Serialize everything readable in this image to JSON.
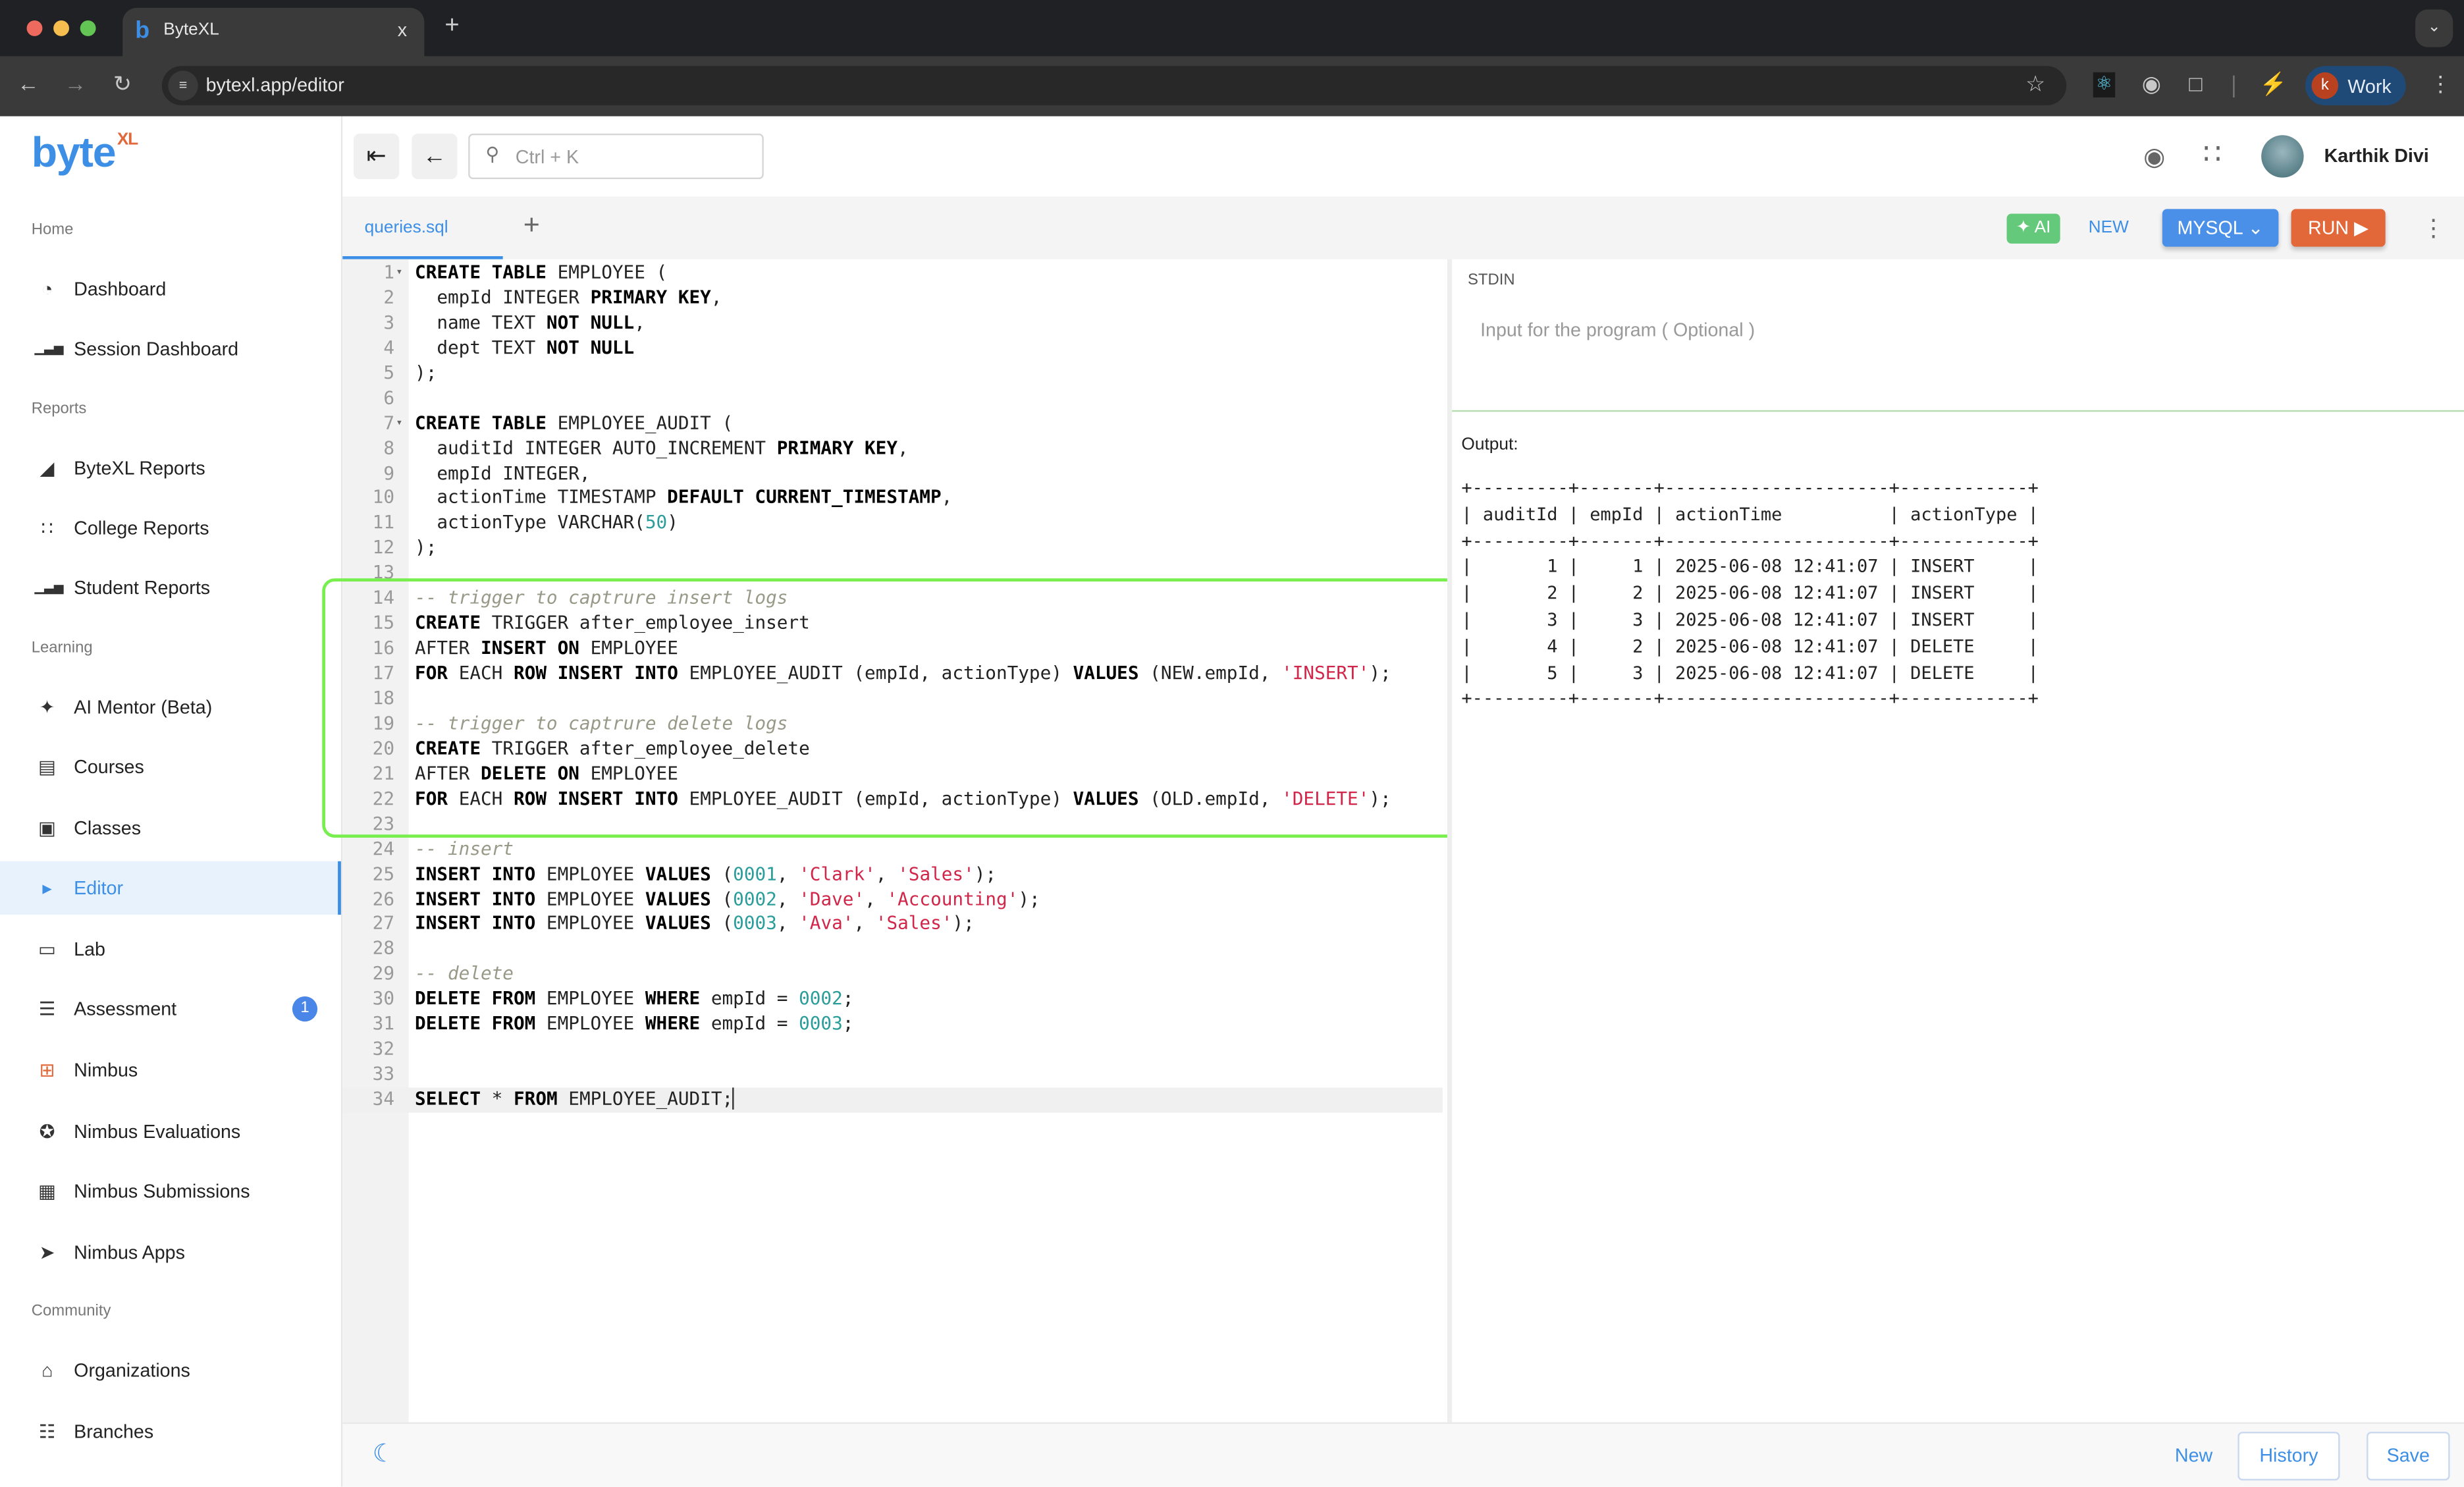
{
  "browser": {
    "tab_title": "ByteXL",
    "tab_close": "x",
    "new_tab": "+",
    "url": "bytexl.app/editor",
    "profile_initial": "k",
    "profile_label": "Work"
  },
  "logo": {
    "text": "byte",
    "sup": "XL",
    "colors": {
      "byte": "#3d8fe6",
      "xl": "#e0683a"
    }
  },
  "sidebar": {
    "sections": [
      {
        "label": "Home",
        "items": [
          {
            "label": "Dashboard",
            "icon": "gauge-icon"
          },
          {
            "label": "Session Dashboard",
            "icon": "bar-chart-icon"
          }
        ]
      },
      {
        "label": "Reports",
        "items": [
          {
            "label": "ByteXL Reports",
            "icon": "area-chart-icon"
          },
          {
            "label": "College Reports",
            "icon": "scatter-chart-icon"
          },
          {
            "label": "Student Reports",
            "icon": "bar-chart-icon"
          }
        ]
      },
      {
        "label": "Learning",
        "items": [
          {
            "label": "AI Mentor (Beta)",
            "icon": "sparkles-icon"
          },
          {
            "label": "Courses",
            "icon": "book-icon"
          },
          {
            "label": "Classes",
            "icon": "classroom-icon"
          },
          {
            "label": "Editor",
            "icon": "terminal-icon",
            "active": true
          },
          {
            "label": "Lab",
            "icon": "laptop-icon"
          },
          {
            "label": "Assessment",
            "icon": "list-icon",
            "badge": "1"
          },
          {
            "label": "Nimbus",
            "icon": "grid-plus-icon"
          },
          {
            "label": "Nimbus Evaluations",
            "icon": "award-icon"
          },
          {
            "label": "Nimbus Submissions",
            "icon": "calendar-check-icon"
          },
          {
            "label": "Nimbus Apps",
            "icon": "rocket-icon"
          }
        ]
      },
      {
        "label": "Community",
        "items": [
          {
            "label": "Organizations",
            "icon": "bank-icon"
          },
          {
            "label": "Branches",
            "icon": "hierarchy-icon"
          }
        ]
      }
    ]
  },
  "header": {
    "search_placeholder": "Ctrl + K",
    "user_name": "Karthik Divi"
  },
  "toolbar": {
    "file_tab": "queries.sql",
    "add_tab": "+",
    "ai_label": "AI",
    "new_label": "NEW",
    "language": "MYSQL",
    "run_label": "RUN",
    "colors": {
      "ai": "#64c97a",
      "language": "#4a8fe8",
      "run": "#e2683a"
    }
  },
  "editor": {
    "active_line": 34,
    "lines": [
      [
        [
          "kw",
          "CREATE TABLE"
        ],
        [
          "p",
          " EMPLOYEE ("
        ]
      ],
      [
        [
          "p",
          "  empId INTEGER "
        ],
        [
          "kw",
          "PRIMARY KEY"
        ],
        [
          "p",
          ","
        ]
      ],
      [
        [
          "p",
          "  name TEXT "
        ],
        [
          "kw",
          "NOT NULL"
        ],
        [
          "p",
          ","
        ]
      ],
      [
        [
          "p",
          "  dept TEXT "
        ],
        [
          "kw",
          "NOT NULL"
        ]
      ],
      [
        [
          "p",
          ");"
        ]
      ],
      [],
      [
        [
          "kw",
          "CREATE TABLE"
        ],
        [
          "p",
          " EMPLOYEE_AUDIT ("
        ]
      ],
      [
        [
          "p",
          "  auditId INTEGER AUTO_INCREMENT "
        ],
        [
          "kw",
          "PRIMARY KEY"
        ],
        [
          "p",
          ","
        ]
      ],
      [
        [
          "p",
          "  empId INTEGER,"
        ]
      ],
      [
        [
          "p",
          "  actionTime TIMESTAMP "
        ],
        [
          "kw",
          "DEFAULT CURRENT_TIMESTAMP"
        ],
        [
          "p",
          ","
        ]
      ],
      [
        [
          "p",
          "  actionType VARCHAR("
        ],
        [
          "num",
          "50"
        ],
        [
          "p",
          ")"
        ]
      ],
      [
        [
          "p",
          ");"
        ]
      ],
      [],
      [
        [
          "cm",
          "-- trigger to captrure insert logs"
        ]
      ],
      [
        [
          "kw",
          "CREATE"
        ],
        [
          "p",
          " TRIGGER after_employee_insert"
        ]
      ],
      [
        [
          "p",
          "AFTER "
        ],
        [
          "kw",
          "INSERT ON"
        ],
        [
          "p",
          " EMPLOYEE"
        ]
      ],
      [
        [
          "kw",
          "FOR"
        ],
        [
          "p",
          " EACH "
        ],
        [
          "kw",
          "ROW INSERT INTO"
        ],
        [
          "p",
          " EMPLOYEE_AUDIT (empId, actionType) "
        ],
        [
          "kw",
          "VALUES"
        ],
        [
          "p",
          " (NEW.empId, "
        ],
        [
          "str",
          "'INSERT'"
        ],
        [
          "p",
          ");"
        ]
      ],
      [],
      [
        [
          "cm",
          "-- trigger to captrure delete logs"
        ]
      ],
      [
        [
          "kw",
          "CREATE"
        ],
        [
          "p",
          " TRIGGER after_employee_delete"
        ]
      ],
      [
        [
          "p",
          "AFTER "
        ],
        [
          "kw",
          "DELETE ON"
        ],
        [
          "p",
          " EMPLOYEE"
        ]
      ],
      [
        [
          "kw",
          "FOR"
        ],
        [
          "p",
          " EACH "
        ],
        [
          "kw",
          "ROW INSERT INTO"
        ],
        [
          "p",
          " EMPLOYEE_AUDIT (empId, actionType) "
        ],
        [
          "kw",
          "VALUES"
        ],
        [
          "p",
          " (OLD.empId, "
        ],
        [
          "str",
          "'DELETE'"
        ],
        [
          "p",
          ");"
        ]
      ],
      [],
      [
        [
          "cm",
          "-- insert"
        ]
      ],
      [
        [
          "kw",
          "INSERT INTO"
        ],
        [
          "p",
          " EMPLOYEE "
        ],
        [
          "kw",
          "VALUES"
        ],
        [
          "p",
          " ("
        ],
        [
          "num",
          "0001"
        ],
        [
          "p",
          ", "
        ],
        [
          "str",
          "'Clark'"
        ],
        [
          "p",
          ", "
        ],
        [
          "str",
          "'Sales'"
        ],
        [
          "p",
          ");"
        ]
      ],
      [
        [
          "kw",
          "INSERT INTO"
        ],
        [
          "p",
          " EMPLOYEE "
        ],
        [
          "kw",
          "VALUES"
        ],
        [
          "p",
          " ("
        ],
        [
          "num",
          "0002"
        ],
        [
          "p",
          ", "
        ],
        [
          "str",
          "'Dave'"
        ],
        [
          "p",
          ", "
        ],
        [
          "str",
          "'Accounting'"
        ],
        [
          "p",
          ");"
        ]
      ],
      [
        [
          "kw",
          "INSERT INTO"
        ],
        [
          "p",
          " EMPLOYEE "
        ],
        [
          "kw",
          "VALUES"
        ],
        [
          "p",
          " ("
        ],
        [
          "num",
          "0003"
        ],
        [
          "p",
          ", "
        ],
        [
          "str",
          "'Ava'"
        ],
        [
          "p",
          ", "
        ],
        [
          "str",
          "'Sales'"
        ],
        [
          "p",
          ");"
        ]
      ],
      [],
      [
        [
          "cm",
          "-- delete"
        ]
      ],
      [
        [
          "kw",
          "DELETE FROM"
        ],
        [
          "p",
          " EMPLOYEE "
        ],
        [
          "kw",
          "WHERE"
        ],
        [
          "p",
          " empId = "
        ],
        [
          "num",
          "0002"
        ],
        [
          "p",
          ";"
        ]
      ],
      [
        [
          "kw",
          "DELETE FROM"
        ],
        [
          "p",
          " EMPLOYEE "
        ],
        [
          "kw",
          "WHERE"
        ],
        [
          "p",
          " empId = "
        ],
        [
          "num",
          "0003"
        ],
        [
          "p",
          ";"
        ]
      ],
      [],
      [],
      [
        [
          "kw",
          "SELECT"
        ],
        [
          "p",
          " * "
        ],
        [
          "kw",
          "FROM"
        ],
        [
          "p",
          " EMPLOYEE_AUDIT;"
        ]
      ]
    ]
  },
  "stdin": {
    "label": "STDIN",
    "placeholder": "Input for the program ( Optional )"
  },
  "output": {
    "label": "Output:",
    "columns": [
      "auditId",
      "empId",
      "actionTime",
      "actionType"
    ],
    "rows": [
      [
        "1",
        "1",
        "2025-06-08 12:41:07",
        "INSERT"
      ],
      [
        "2",
        "2",
        "2025-06-08 12:41:07",
        "INSERT"
      ],
      [
        "3",
        "3",
        "2025-06-08 12:41:07",
        "INSERT"
      ],
      [
        "4",
        "2",
        "2025-06-08 12:41:07",
        "DELETE"
      ],
      [
        "5",
        "3",
        "2025-06-08 12:41:07",
        "DELETE"
      ]
    ]
  },
  "footer": {
    "new_label": "New",
    "history_label": "History",
    "save_label": "Save"
  }
}
